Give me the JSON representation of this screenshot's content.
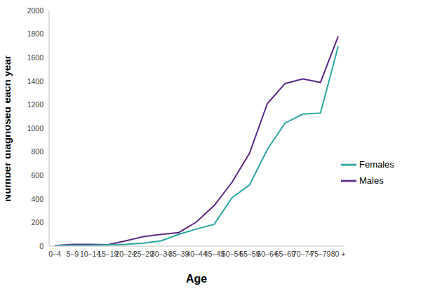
{
  "chart_data": {
    "type": "line",
    "x_label": "Age",
    "y_label": "Number diagnosed each year",
    "categories": [
      "0–4",
      "5–9",
      "10–14",
      "15–19",
      "20–24",
      "25–29",
      "30–34",
      "35–39",
      "40–44",
      "45–49",
      "50–54",
      "55–59",
      "60–64",
      "65–69",
      "70–74",
      "75–79",
      "80 +"
    ],
    "series": [
      {
        "name": "Males",
        "color": "#5b2a86",
        "values": [
          5,
          15,
          15,
          12,
          45,
          80,
          100,
          115,
          205,
          345,
          540,
          790,
          1210,
          1380,
          1420,
          1390,
          1780
        ]
      },
      {
        "name": "Females",
        "color": "#2aa6a0",
        "values": [
          5,
          8,
          8,
          10,
          15,
          25,
          45,
          100,
          145,
          185,
          410,
          520,
          820,
          1045,
          1120,
          1130,
          1695
        ]
      }
    ],
    "ylim": [
      0,
      2000
    ],
    "yticks": [
      0,
      200,
      400,
      600,
      800,
      1000,
      1200,
      1400,
      1600,
      1800,
      2000
    ],
    "grid": false,
    "legend": "right"
  }
}
